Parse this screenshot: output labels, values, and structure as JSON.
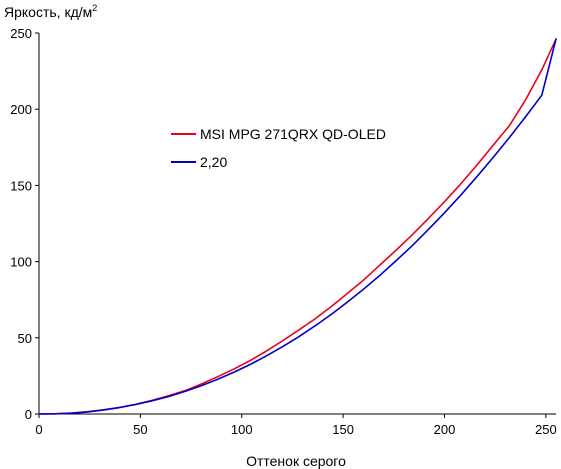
{
  "chart_data": {
    "type": "line",
    "title": "",
    "ylabel": "Яркость, кд/м",
    "ylabel_superscript": "2",
    "xlabel": "Оттенок серого",
    "xlim": [
      0,
      255
    ],
    "ylim": [
      0,
      250
    ],
    "xticks": [
      0,
      50,
      100,
      150,
      200,
      250
    ],
    "yticks": [
      0,
      50,
      100,
      150,
      200,
      250
    ],
    "grid": false,
    "legend_position": "center-left",
    "series": [
      {
        "name": "MSI MPG 271QRX QD-OLED",
        "color": "#e8001c",
        "x": [
          0,
          8,
          16,
          24,
          32,
          40,
          48,
          56,
          64,
          72,
          80,
          88,
          96,
          104,
          112,
          120,
          128,
          136,
          144,
          152,
          160,
          168,
          176,
          184,
          192,
          200,
          208,
          216,
          224,
          232,
          240,
          248,
          255
        ],
        "y": [
          0,
          0.1,
          0.6,
          1.5,
          2.8,
          4.3,
          6.4,
          9.0,
          12.0,
          15.3,
          19.6,
          24.4,
          29.4,
          35.0,
          41.2,
          47.9,
          55.0,
          62.3,
          70.4,
          79.0,
          87.8,
          97.6,
          107.3,
          117.5,
          128.2,
          139.3,
          151.0,
          163.3,
          176.4,
          189.2,
          206.2,
          225.8,
          246.0
        ]
      },
      {
        "name": "2,20",
        "color": "#0000c8",
        "x": [
          0,
          8,
          16,
          24,
          32,
          40,
          48,
          56,
          64,
          72,
          80,
          88,
          96,
          104,
          112,
          120,
          128,
          136,
          144,
          152,
          160,
          168,
          176,
          184,
          192,
          200,
          208,
          216,
          224,
          232,
          240,
          248,
          255
        ],
        "y": [
          0,
          0.1,
          0.5,
          1.4,
          2.6,
          4.3,
          6.3,
          8.7,
          11.5,
          14.8,
          18.5,
          22.7,
          27.3,
          32.4,
          38.0,
          44.1,
          50.6,
          57.7,
          65.2,
          73.3,
          81.8,
          90.8,
          100.4,
          110.4,
          121.0,
          132.0,
          143.6,
          155.7,
          168.3,
          181.4,
          195.0,
          209.2,
          246.0
        ]
      }
    ]
  }
}
